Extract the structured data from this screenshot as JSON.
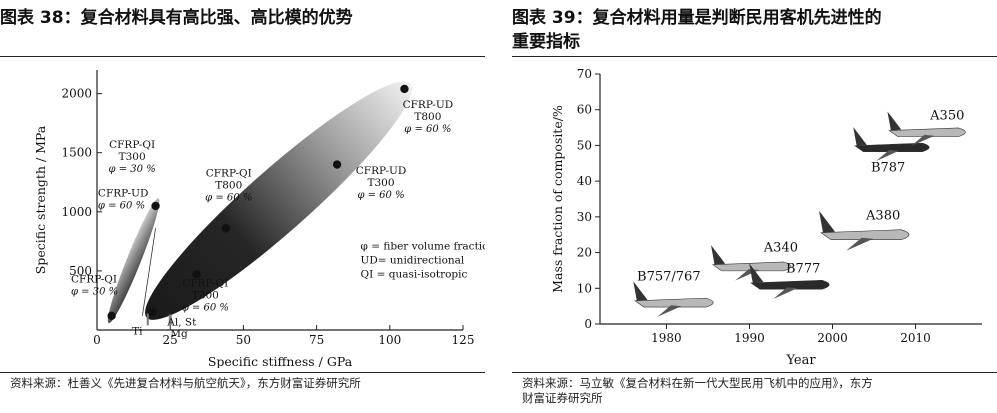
{
  "left": {
    "title": "图表 38：复合材料具有高比强、高比模的优势",
    "source": "资料来源：杜善义《先进复合材料与航空航天》，东方财富证券研究所",
    "chart_data": {
      "type": "scatter",
      "xlabel": "Specific stiffness / GPa",
      "ylabel": "Specific strength / MPa",
      "xlim": [
        0,
        125
      ],
      "ylim": [
        0,
        2200
      ],
      "xticks": [
        "0",
        "25",
        "50",
        "75",
        "100",
        "125"
      ],
      "yticks": [
        "500",
        "1000",
        "1500",
        "2000"
      ],
      "grid": false,
      "regions": [
        {
          "name": "quasi-isotropic band",
          "from": [
            5,
            120
          ],
          "to": [
            20,
            1050
          ]
        },
        {
          "name": "unidirectional band",
          "from": [
            19,
            150
          ],
          "to": [
            105,
            2040
          ]
        }
      ],
      "points": [
        {
          "x": 5,
          "y": 120
        },
        {
          "x": 19,
          "y": 150
        },
        {
          "x": 20,
          "y": 1050
        },
        {
          "x": 34,
          "y": 470
        },
        {
          "x": 44,
          "y": 860
        },
        {
          "x": 82,
          "y": 1400
        },
        {
          "x": 105,
          "y": 2040
        }
      ],
      "point_labels": [
        {
          "lines": [
            "CFRP-QI",
            "φ = 30 %"
          ]
        },
        {
          "lines": [
            "CFRP-UD",
            "φ = 60 %"
          ]
        },
        {
          "lines": [
            "CFRP-QI",
            "T300",
            "φ = 30 %"
          ]
        },
        {
          "lines": [
            "CFRP-QI",
            "T800",
            "φ = 60 %"
          ]
        },
        {
          "lines": [
            "CFRP-QI",
            "T300",
            "φ = 60 %"
          ]
        },
        {
          "lines": [
            "CFRP-UD",
            "T300",
            "φ = 60 %"
          ]
        },
        {
          "lines": [
            "CFRP-UD",
            "T800",
            "φ = 60 %"
          ]
        }
      ],
      "metal_labels": [
        "Ti",
        "Al, St",
        "Mg"
      ],
      "legend_notes": [
        "φ = fiber volume fraction",
        "UD= unidirectional",
        "QI  = quasi-isotropic"
      ]
    }
  },
  "right": {
    "title_lines": [
      "图表 39：复合材料用量是判断民用客机先进性的",
      "重要指标"
    ],
    "source_lines": [
      "资料来源：马立敏《复合材料在新一代大型民用飞机中的应用》，东方",
      "财富证券研究所"
    ],
    "chart_data": {
      "type": "scatter",
      "xlabel": "Year",
      "ylabel": "Mass fraction of composite/%",
      "xlim": [
        1972,
        2018
      ],
      "ylim": [
        0,
        70
      ],
      "xticks": [
        1980,
        1990,
        2000,
        2010
      ],
      "yticks": [
        0,
        10,
        20,
        30,
        40,
        50,
        60,
        70
      ],
      "grid": false,
      "points": [
        {
          "label": "B757/767",
          "x": 1982,
          "y": 6
        },
        {
          "label": "A340",
          "x": 1991,
          "y": 15
        },
        {
          "label": "B777",
          "x": 1995,
          "y": 11
        },
        {
          "label": "A380",
          "x": 2005,
          "y": 25
        },
        {
          "label": "B787",
          "x": 2008,
          "y": 50
        },
        {
          "label": "A350",
          "x": 2012,
          "y": 52
        }
      ]
    }
  }
}
